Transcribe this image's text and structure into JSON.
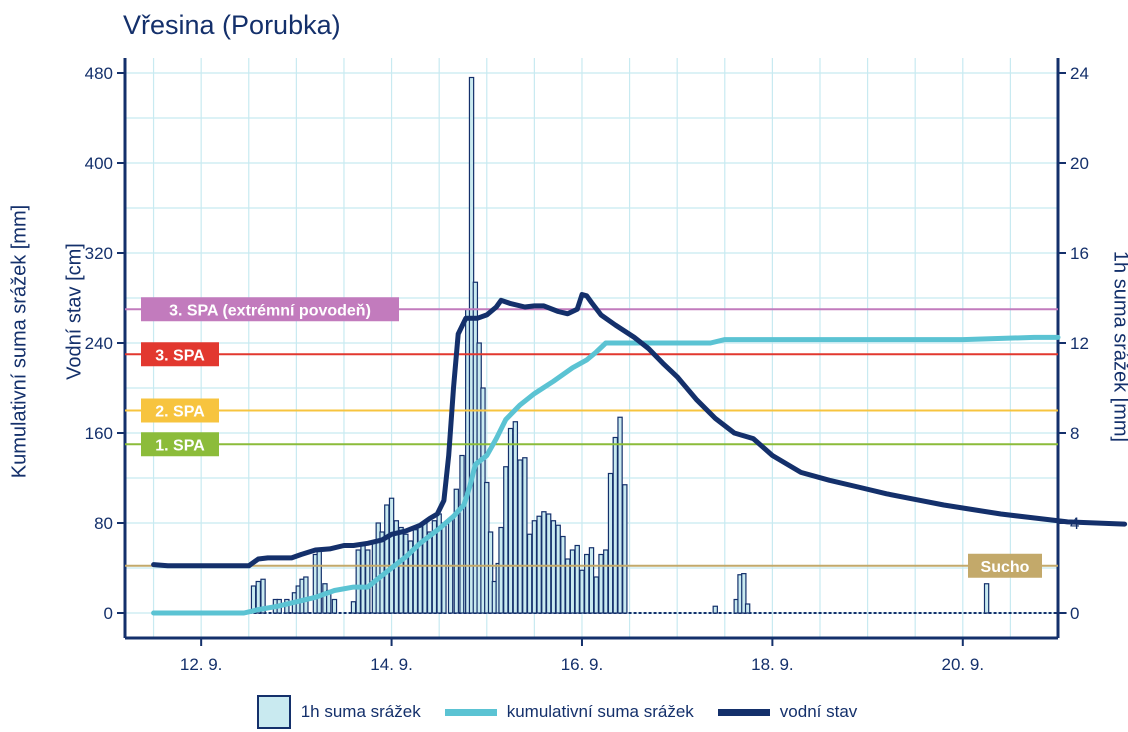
{
  "chart_data": {
    "type": "combo",
    "title": "Vřesina (Porubka)",
    "left_axis": {
      "labels": [
        "Kumulativní suma srážek [mm]",
        "Vodní stav [cm]"
      ],
      "range": [
        0,
        480
      ],
      "ticks": [
        0,
        80,
        160,
        240,
        320,
        400,
        480
      ]
    },
    "right_axis": {
      "label": "1h suma srážek [mm]",
      "range": [
        0,
        24
      ],
      "ticks": [
        0,
        4,
        8,
        12,
        16,
        20,
        24
      ]
    },
    "x_axis": {
      "range": [
        11.2,
        21.0
      ],
      "ticks": [
        12,
        14,
        16,
        18,
        20
      ],
      "tick_labels": [
        "12. 9.",
        "14. 9.",
        "16. 9.",
        "18. 9.",
        "20. 9."
      ]
    },
    "thresholds": [
      {
        "label": "3. SPA (extrémní povodeň)",
        "value": 270,
        "color": "#c27bbd"
      },
      {
        "label": "3. SPA",
        "value": 230,
        "color": "#e2382f"
      },
      {
        "label": "2. SPA",
        "value": 180,
        "color": "#f7c43f"
      },
      {
        "label": "1. SPA",
        "value": 150,
        "color": "#8cbc3a"
      },
      {
        "label": "Sucho",
        "value": 42,
        "color": "#c3a96a"
      }
    ],
    "series": [
      {
        "name": "1h suma srážek",
        "type": "bar",
        "axis": "right",
        "points": [
          [
            12.55,
            1.2
          ],
          [
            12.6,
            1.4
          ],
          [
            12.65,
            1.5
          ],
          [
            12.78,
            0.6
          ],
          [
            12.82,
            0.6
          ],
          [
            12.9,
            0.6
          ],
          [
            12.98,
            0.9
          ],
          [
            13.02,
            1.2
          ],
          [
            13.06,
            1.5
          ],
          [
            13.1,
            1.6
          ],
          [
            13.2,
            2.6
          ],
          [
            13.24,
            2.8
          ],
          [
            13.3,
            1.3
          ],
          [
            13.34,
            1.0
          ],
          [
            13.4,
            0.6
          ],
          [
            13.6,
            0.5
          ],
          [
            13.65,
            2.8
          ],
          [
            13.7,
            3.0
          ],
          [
            13.75,
            2.8
          ],
          [
            13.82,
            3.2
          ],
          [
            13.86,
            4.0
          ],
          [
            13.9,
            3.6
          ],
          [
            13.95,
            4.8
          ],
          [
            14.0,
            5.1
          ],
          [
            14.05,
            4.1
          ],
          [
            14.1,
            3.8
          ],
          [
            14.15,
            3.5
          ],
          [
            14.2,
            3.2
          ],
          [
            14.25,
            3.7
          ],
          [
            14.3,
            3.9
          ],
          [
            14.35,
            4.0
          ],
          [
            14.4,
            3.6
          ],
          [
            14.45,
            4.1
          ],
          [
            14.5,
            4.4
          ],
          [
            14.55,
            4.0
          ],
          [
            14.62,
            4.2
          ],
          [
            14.68,
            5.5
          ],
          [
            14.74,
            7.0
          ],
          [
            14.78,
            4.9
          ],
          [
            14.8,
            13.5
          ],
          [
            14.84,
            23.8
          ],
          [
            14.88,
            14.7
          ],
          [
            14.92,
            12.0
          ],
          [
            14.96,
            10.0
          ],
          [
            15.0,
            5.8
          ],
          [
            15.04,
            3.6
          ],
          [
            15.08,
            1.4
          ],
          [
            15.12,
            2.2
          ],
          [
            15.15,
            3.8
          ],
          [
            15.2,
            6.5
          ],
          [
            15.25,
            8.2
          ],
          [
            15.3,
            8.5
          ],
          [
            15.35,
            6.8
          ],
          [
            15.4,
            6.9
          ],
          [
            15.45,
            3.5
          ],
          [
            15.5,
            4.1
          ],
          [
            15.55,
            4.3
          ],
          [
            15.6,
            4.5
          ],
          [
            15.65,
            4.4
          ],
          [
            15.7,
            4.1
          ],
          [
            15.75,
            3.9
          ],
          [
            15.8,
            3.4
          ],
          [
            15.85,
            2.4
          ],
          [
            15.9,
            2.8
          ],
          [
            15.95,
            3.0
          ],
          [
            16.0,
            1.9
          ],
          [
            16.05,
            2.6
          ],
          [
            16.1,
            2.9
          ],
          [
            16.15,
            1.6
          ],
          [
            16.2,
            2.6
          ],
          [
            16.25,
            2.8
          ],
          [
            16.3,
            6.2
          ],
          [
            16.35,
            7.8
          ],
          [
            16.4,
            8.7
          ],
          [
            16.45,
            5.7
          ],
          [
            17.4,
            0.3
          ],
          [
            17.62,
            0.6
          ],
          [
            17.66,
            1.7
          ],
          [
            17.7,
            1.75
          ],
          [
            17.74,
            0.4
          ],
          [
            20.25,
            1.3
          ]
        ]
      },
      {
        "name": "kumulativní suma srážek",
        "type": "line",
        "axis": "left",
        "points": [
          [
            11.5,
            0
          ],
          [
            12.45,
            0
          ],
          [
            12.6,
            3
          ],
          [
            12.8,
            6
          ],
          [
            13.0,
            10
          ],
          [
            13.2,
            14
          ],
          [
            13.4,
            20
          ],
          [
            13.6,
            23
          ],
          [
            13.75,
            23
          ],
          [
            13.85,
            30
          ],
          [
            14.0,
            40
          ],
          [
            14.15,
            50
          ],
          [
            14.3,
            62
          ],
          [
            14.5,
            75
          ],
          [
            14.65,
            86
          ],
          [
            14.76,
            96
          ],
          [
            14.82,
            112
          ],
          [
            14.88,
            132
          ],
          [
            15.0,
            140
          ],
          [
            15.1,
            155
          ],
          [
            15.2,
            172
          ],
          [
            15.35,
            185
          ],
          [
            15.5,
            195
          ],
          [
            15.7,
            206
          ],
          [
            15.9,
            218
          ],
          [
            16.05,
            225
          ],
          [
            16.15,
            232
          ],
          [
            16.25,
            240
          ],
          [
            16.4,
            240
          ],
          [
            17.0,
            240
          ],
          [
            17.35,
            240
          ],
          [
            17.5,
            243
          ],
          [
            17.7,
            243
          ],
          [
            18.0,
            243
          ],
          [
            19.0,
            243
          ],
          [
            20.0,
            243
          ],
          [
            20.75,
            245
          ],
          [
            21.0,
            245
          ]
        ]
      },
      {
        "name": "vodní stav",
        "type": "line",
        "axis": "left",
        "points": [
          [
            11.5,
            43
          ],
          [
            11.65,
            42
          ],
          [
            12.0,
            42
          ],
          [
            12.4,
            42
          ],
          [
            12.5,
            42
          ],
          [
            12.6,
            48
          ],
          [
            12.7,
            49
          ],
          [
            12.95,
            49
          ],
          [
            13.05,
            52
          ],
          [
            13.2,
            56
          ],
          [
            13.35,
            57
          ],
          [
            13.5,
            60
          ],
          [
            13.6,
            60
          ],
          [
            13.75,
            62
          ],
          [
            13.9,
            65
          ],
          [
            14.0,
            70
          ],
          [
            14.15,
            73
          ],
          [
            14.3,
            78
          ],
          [
            14.4,
            84
          ],
          [
            14.48,
            88
          ],
          [
            14.55,
            100
          ],
          [
            14.6,
            140
          ],
          [
            14.65,
            200
          ],
          [
            14.7,
            248
          ],
          [
            14.78,
            262
          ],
          [
            14.9,
            262
          ],
          [
            15.0,
            265
          ],
          [
            15.1,
            272
          ],
          [
            15.15,
            278
          ],
          [
            15.25,
            275
          ],
          [
            15.4,
            272
          ],
          [
            15.5,
            273
          ],
          [
            15.6,
            273
          ],
          [
            15.75,
            268
          ],
          [
            15.85,
            266
          ],
          [
            15.95,
            270
          ],
          [
            16.0,
            283
          ],
          [
            16.05,
            282
          ],
          [
            16.1,
            276
          ],
          [
            16.2,
            265
          ],
          [
            16.35,
            256
          ],
          [
            16.55,
            245
          ],
          [
            16.7,
            235
          ],
          [
            16.85,
            222
          ],
          [
            17.0,
            210
          ],
          [
            17.2,
            190
          ],
          [
            17.4,
            173
          ],
          [
            17.6,
            160
          ],
          [
            17.8,
            155
          ],
          [
            18.0,
            140
          ],
          [
            18.3,
            125
          ],
          [
            18.6,
            118
          ],
          [
            18.9,
            112
          ],
          [
            19.2,
            106
          ],
          [
            19.5,
            101
          ],
          [
            19.8,
            96
          ],
          [
            20.1,
            92
          ],
          [
            20.4,
            88
          ],
          [
            20.7,
            85
          ],
          [
            20.9,
            83
          ],
          [
            21.1,
            81
          ],
          [
            21.4,
            80
          ],
          [
            21.7,
            79
          ]
        ]
      }
    ],
    "legend": [
      "1h suma srážek",
      "kumulativní suma srážek",
      "vodní stav"
    ],
    "legend_position": "bottom",
    "grid": true
  },
  "colors": {
    "axis": "#14306b",
    "grid": "#c8eaf1",
    "bar_fill": "#c9eaf0",
    "bar_stroke": "#14306b",
    "cumulative": "#5bc3d3",
    "level": "#14306b"
  }
}
